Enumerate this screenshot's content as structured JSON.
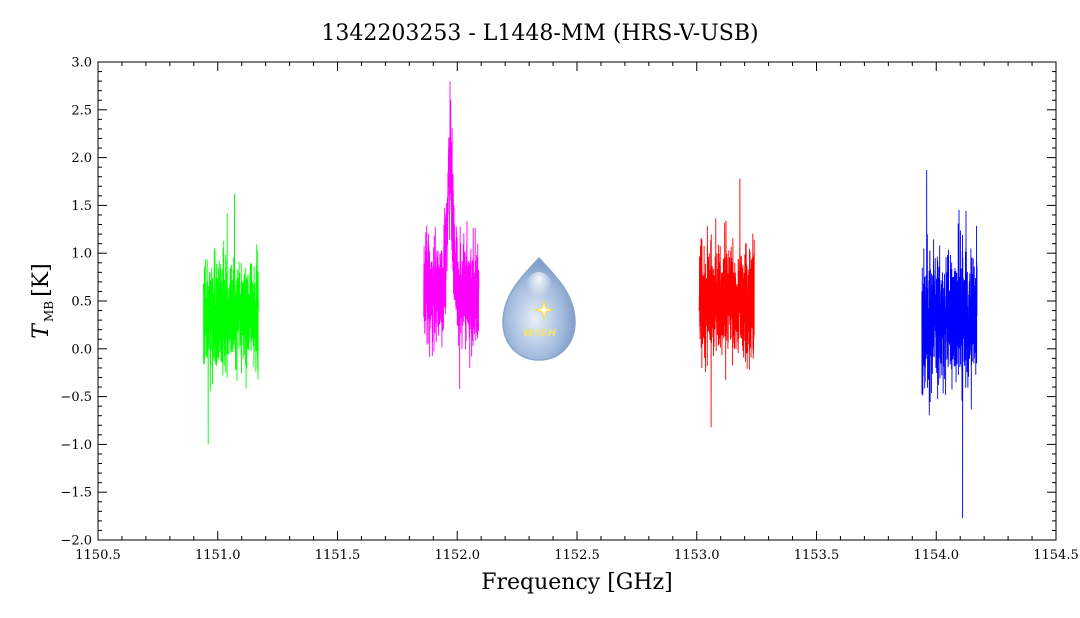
{
  "chart_data": {
    "type": "line",
    "title": "1342203253 - L1448-MM (HRS-V-USB)",
    "xlabel": "Frequency [GHz]",
    "ylabel": {
      "main": "T",
      "sub": "MB",
      "unit": "[K]"
    },
    "xlim": [
      1150.5,
      1154.5
    ],
    "ylim": [
      -2.0,
      3.0
    ],
    "xticks": [
      1150.5,
      1151.0,
      1151.5,
      1152.0,
      1152.5,
      1153.0,
      1153.5,
      1154.0,
      1154.5
    ],
    "yticks": [
      -2.0,
      -1.5,
      -1.0,
      -0.5,
      0.0,
      0.5,
      1.0,
      1.5,
      2.0,
      2.5,
      3.0
    ],
    "xtick_labels": [
      "1150.5",
      "1151.0",
      "1151.5",
      "1152.0",
      "1152.5",
      "1153.0",
      "1153.5",
      "1154.0",
      "1154.5"
    ],
    "ytick_labels": [
      "−2.0",
      "−1.5",
      "−1.0",
      "−0.5",
      "0.0",
      "0.5",
      "1.0",
      "1.5",
      "2.0",
      "2.5",
      "3.0"
    ],
    "grid": false,
    "series": [
      {
        "color": "#00ff00",
        "x_start": 1150.94,
        "x_end": 1151.17,
        "baseline": 0.35,
        "noise": 0.33,
        "min": -1.0,
        "max": 1.62,
        "min_x": 1150.96,
        "max_x": 1151.07
      },
      {
        "color": "#ff00ff",
        "x_start": 1151.86,
        "x_end": 1152.09,
        "baseline": 0.6,
        "noise": 0.32,
        "min": -0.42,
        "max": 2.8,
        "min_x": 1152.01,
        "max_x": 1151.97,
        "peak": {
          "center": 1151.97,
          "height": 1.2,
          "width": 0.012
        }
      },
      {
        "color": "#ff0000",
        "x_start": 1153.01,
        "x_end": 1153.24,
        "baseline": 0.5,
        "noise": 0.33,
        "min": -0.82,
        "max": 1.78,
        "min_x": 1153.06,
        "max_x": 1153.18
      },
      {
        "color": "#0000ff",
        "x_start": 1153.94,
        "x_end": 1154.17,
        "baseline": 0.3,
        "noise": 0.38,
        "min": -1.77,
        "max": 1.87,
        "min_x": 1154.11,
        "max_x": 1153.96
      }
    ]
  },
  "logo": {
    "name": "wish-logo",
    "text": "WISH"
  }
}
